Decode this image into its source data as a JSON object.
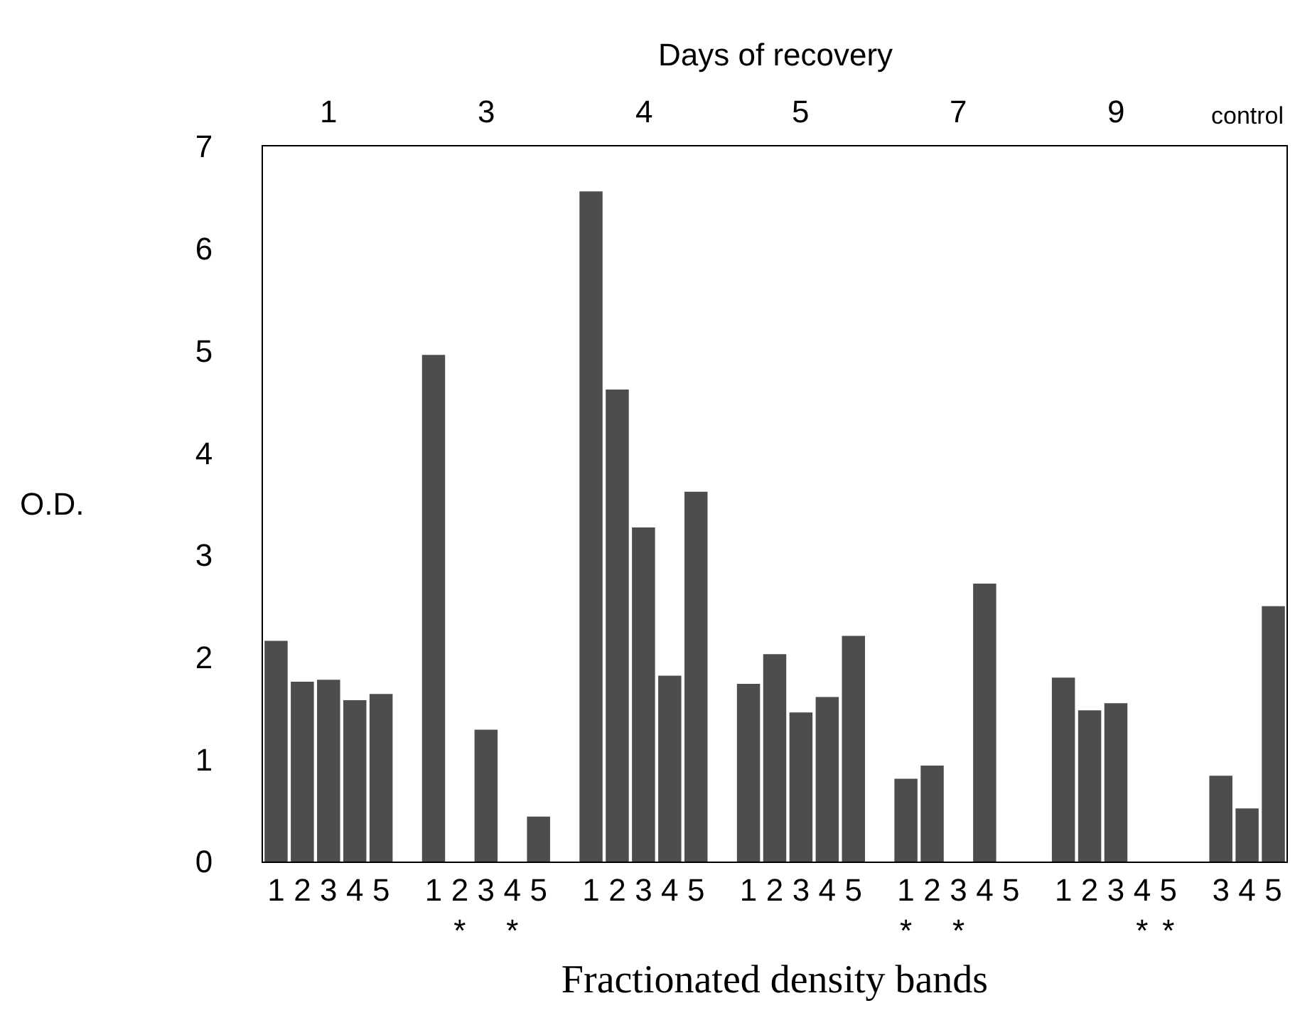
{
  "chart_data": {
    "type": "bar",
    "x2label": "Days of recovery",
    "ylabel": "O.D.",
    "xlabel": "Fractionated density bands",
    "categories": [
      "1",
      "2",
      "3",
      "4",
      "5",
      null,
      "1",
      "2\n*",
      "3",
      "4\n*",
      "5",
      null,
      "1",
      "2",
      "3",
      "4",
      "5",
      null,
      "1",
      "2",
      "3",
      "4",
      "5",
      null,
      "1\n*",
      "2",
      "3\n*",
      "4",
      "5",
      null,
      "1",
      "2",
      "3",
      "4\n*",
      "5\n*",
      null,
      "3",
      "4",
      "5"
    ],
    "values": [
      2.16,
      1.76,
      1.78,
      1.58,
      1.64,
      null,
      4.96,
      null,
      1.29,
      null,
      0.44,
      null,
      6.56,
      4.62,
      3.27,
      1.82,
      3.62,
      null,
      1.74,
      2.03,
      1.46,
      1.61,
      2.21,
      null,
      0.81,
      0.94,
      null,
      2.72,
      null,
      null,
      1.8,
      1.48,
      1.55,
      null,
      null,
      null,
      0.84,
      0.52,
      2.5
    ],
    "color": "#4d4d4d",
    "ylim": [
      0,
      7
    ],
    "yticks": [
      0,
      1,
      2,
      3,
      4,
      5,
      6,
      7
    ],
    "annotations": [
      "1",
      "3",
      "4",
      "5",
      "7",
      "9",
      "control"
    ]
  }
}
